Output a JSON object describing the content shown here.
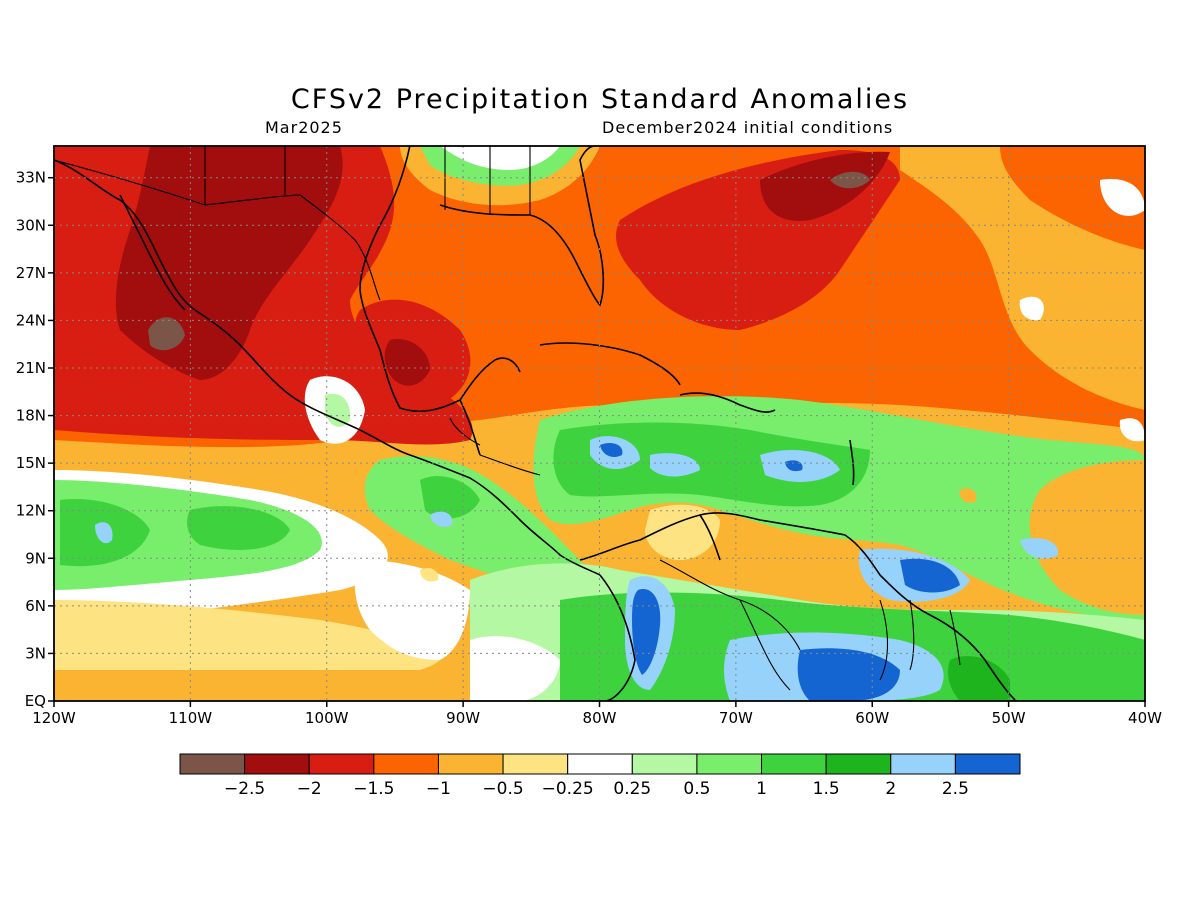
{
  "title": "CFSv2 Precipitation Standard Anomalies",
  "subtitle_left": "Mar2025",
  "subtitle_right": "December2024 initial conditions",
  "map": {
    "lon_range": [
      -120,
      -40
    ],
    "lat_range": [
      0,
      35
    ],
    "lon_ticks": [
      {
        "value": -120,
        "label": "120W"
      },
      {
        "value": -110,
        "label": "110W"
      },
      {
        "value": -100,
        "label": "100W"
      },
      {
        "value": -90,
        "label": "90W"
      },
      {
        "value": -80,
        "label": "80W"
      },
      {
        "value": -70,
        "label": "70W"
      },
      {
        "value": -60,
        "label": "60W"
      },
      {
        "value": -50,
        "label": "50W"
      },
      {
        "value": -40,
        "label": "40W"
      }
    ],
    "lat_ticks": [
      {
        "value": 0,
        "label": "EQ"
      },
      {
        "value": 3,
        "label": "3N"
      },
      {
        "value": 6,
        "label": "6N"
      },
      {
        "value": 9,
        "label": "9N"
      },
      {
        "value": 12,
        "label": "12N"
      },
      {
        "value": 15,
        "label": "15N"
      },
      {
        "value": 18,
        "label": "18N"
      },
      {
        "value": 21,
        "label": "21N"
      },
      {
        "value": 24,
        "label": "24N"
      },
      {
        "value": 27,
        "label": "27N"
      },
      {
        "value": 30,
        "label": "30N"
      },
      {
        "value": 33,
        "label": "33N"
      }
    ],
    "grid": "dotted"
  },
  "colorbar": {
    "colors": [
      "#7a5548",
      "#a20d0d",
      "#d81e12",
      "#fb6400",
      "#fbb432",
      "#fde382",
      "#ffffff",
      "#b4f8a4",
      "#78ee6c",
      "#3ed33e",
      "#1eb41e",
      "#96d2fa",
      "#1465d2"
    ],
    "labels": [
      "-2.5",
      "-2",
      "-1.5",
      "-1",
      "-0.5",
      "-0.25",
      "0.25",
      "0.5",
      "1",
      "1.5",
      "2",
      "2.5"
    ]
  }
}
